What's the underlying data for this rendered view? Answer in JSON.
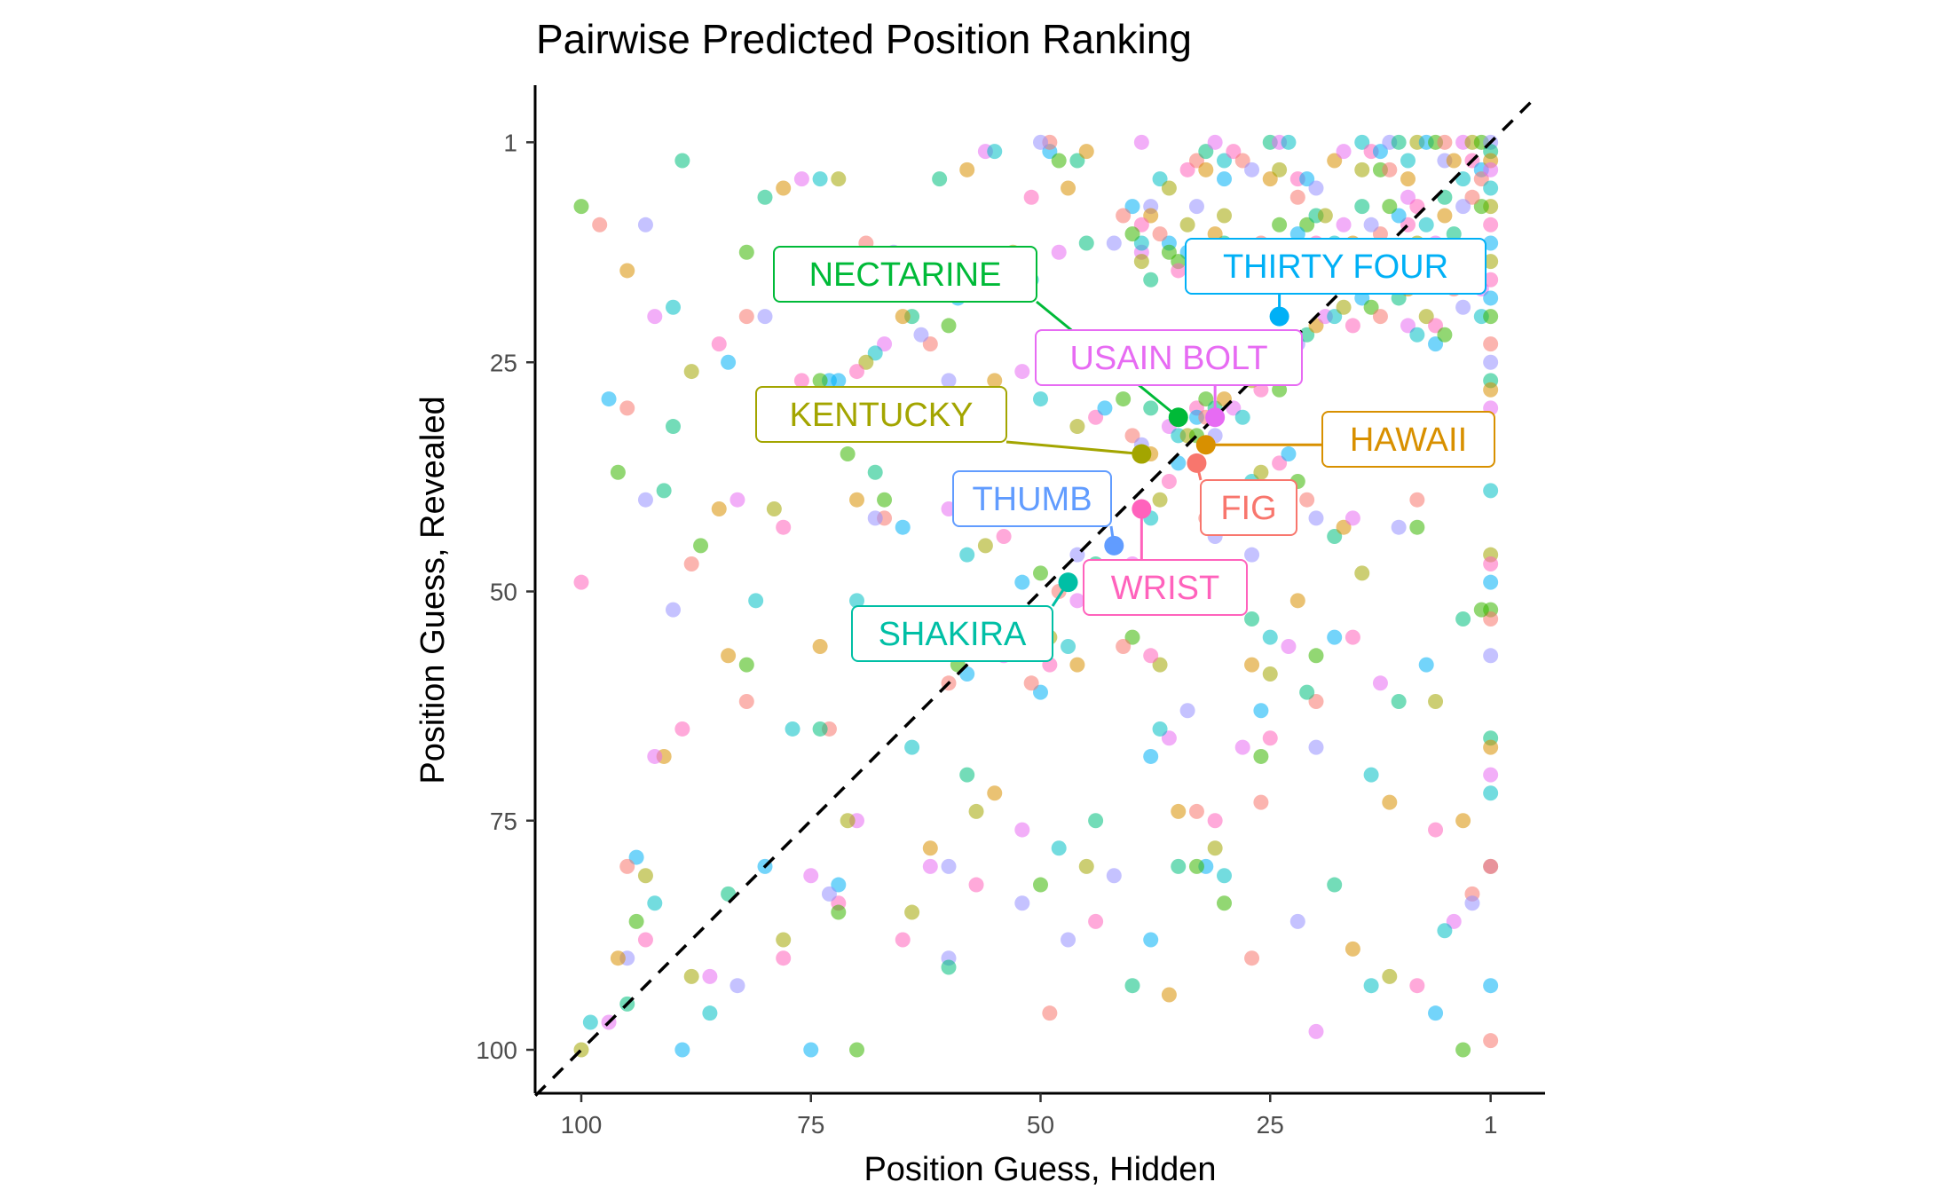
{
  "chart_data": {
    "type": "scatter",
    "title": "Pairwise Predicted Position Ranking",
    "xlabel": "Position Guess, Hidden",
    "ylabel": "Position Guess, Revealed",
    "xlim": [
      105,
      -4
    ],
    "ylim": [
      105,
      -4
    ],
    "x_reversed": true,
    "y_reversed": true,
    "x_ticks": [
      100,
      75,
      50,
      25,
      1
    ],
    "y_ticks": [
      1,
      25,
      50,
      75,
      100
    ],
    "reference_line": "y = x (dashed)",
    "grid": false,
    "palette": [
      "#F8766D",
      "#D89000",
      "#A3A500",
      "#39B600",
      "#00BF7D",
      "#00BFC4",
      "#00B0F6",
      "#9590FF",
      "#E76BF3",
      "#FF62BC"
    ],
    "background_points": [
      [
        100,
        8
      ],
      [
        98,
        10
      ],
      [
        93,
        10
      ],
      [
        89,
        3
      ],
      [
        95,
        15
      ],
      [
        92,
        20
      ],
      [
        90,
        19
      ],
      [
        88,
        26
      ],
      [
        85,
        23
      ],
      [
        84,
        25
      ],
      [
        82,
        13
      ],
      [
        82,
        20
      ],
      [
        80,
        20
      ],
      [
        80,
        7
      ],
      [
        78,
        6
      ],
      [
        76,
        5
      ],
      [
        74,
        5
      ],
      [
        72,
        5
      ],
      [
        76,
        27
      ],
      [
        73,
        27
      ],
      [
        71,
        35
      ],
      [
        69,
        12
      ],
      [
        66,
        13
      ],
      [
        61,
        5
      ],
      [
        58,
        4
      ],
      [
        56,
        2
      ],
      [
        55,
        2
      ],
      [
        53,
        13
      ],
      [
        51,
        7
      ],
      [
        49,
        2
      ],
      [
        48,
        3
      ],
      [
        49,
        1
      ],
      [
        50,
        1
      ],
      [
        46,
        3
      ],
      [
        45,
        2
      ],
      [
        39,
        1
      ],
      [
        37,
        5
      ],
      [
        36,
        6
      ],
      [
        34,
        4
      ],
      [
        34,
        13
      ],
      [
        35,
        14
      ],
      [
        33,
        3
      ],
      [
        33,
        8
      ],
      [
        32,
        2
      ],
      [
        32,
        4
      ],
      [
        31,
        1
      ],
      [
        30,
        3
      ],
      [
        30,
        9
      ],
      [
        29,
        2
      ],
      [
        30,
        5
      ],
      [
        30,
        15
      ],
      [
        28,
        3
      ],
      [
        27,
        4
      ],
      [
        25,
        1
      ],
      [
        25,
        5
      ],
      [
        24,
        1
      ],
      [
        23,
        1
      ],
      [
        24,
        4
      ],
      [
        22,
        5
      ],
      [
        21,
        5
      ],
      [
        21,
        10
      ],
      [
        22,
        7
      ],
      [
        20,
        6
      ],
      [
        20,
        9
      ],
      [
        18,
        3
      ],
      [
        17,
        2
      ],
      [
        15,
        1
      ],
      [
        15,
        4
      ],
      [
        14,
        2
      ],
      [
        13,
        2
      ],
      [
        13,
        4
      ],
      [
        12,
        4
      ],
      [
        12,
        1
      ],
      [
        11,
        1
      ],
      [
        10,
        5
      ],
      [
        10,
        7
      ],
      [
        10,
        3
      ],
      [
        9,
        1
      ],
      [
        9,
        8
      ],
      [
        8,
        1
      ],
      [
        7,
        1
      ],
      [
        6,
        1
      ],
      [
        6,
        3
      ],
      [
        6,
        7
      ],
      [
        5,
        3
      ],
      [
        4,
        1
      ],
      [
        4,
        5
      ],
      [
        3,
        1
      ],
      [
        3,
        3
      ],
      [
        2,
        4
      ],
      [
        2,
        1
      ],
      [
        2,
        5
      ],
      [
        1,
        1
      ],
      [
        1,
        2
      ],
      [
        1,
        3
      ],
      [
        1,
        4
      ],
      [
        1,
        6
      ],
      [
        1,
        8
      ],
      [
        1,
        10
      ],
      [
        1,
        12
      ],
      [
        2,
        8
      ],
      [
        3,
        7
      ],
      [
        4,
        8
      ],
      [
        5,
        11
      ],
      [
        6,
        9
      ],
      [
        7,
        12
      ],
      [
        8,
        10
      ],
      [
        9,
        12
      ],
      [
        10,
        10
      ],
      [
        11,
        9
      ],
      [
        12,
        8
      ],
      [
        13,
        11
      ],
      [
        14,
        10
      ],
      [
        15,
        8
      ],
      [
        16,
        12
      ],
      [
        17,
        10
      ],
      [
        18,
        12
      ],
      [
        19,
        9
      ],
      [
        20,
        12
      ],
      [
        22,
        11
      ],
      [
        24,
        10
      ],
      [
        26,
        12
      ],
      [
        28,
        13
      ],
      [
        30,
        12
      ],
      [
        31,
        11
      ],
      [
        32,
        14
      ],
      [
        33,
        16
      ],
      [
        34,
        10
      ],
      [
        35,
        15
      ],
      [
        36,
        12
      ],
      [
        36,
        13
      ],
      [
        37,
        11
      ],
      [
        38,
        8
      ],
      [
        38,
        16
      ],
      [
        38,
        9
      ],
      [
        39,
        13
      ],
      [
        39,
        12
      ],
      [
        39,
        14
      ],
      [
        39,
        10
      ],
      [
        40,
        8
      ],
      [
        40,
        11
      ],
      [
        41,
        9
      ],
      [
        42,
        12
      ],
      [
        45,
        12
      ],
      [
        47,
        6
      ],
      [
        48,
        13
      ],
      [
        51,
        16
      ],
      [
        53,
        17
      ],
      [
        57,
        16
      ],
      [
        59,
        18
      ],
      [
        60,
        21
      ],
      [
        62,
        23
      ],
      [
        63,
        22
      ],
      [
        64,
        20
      ],
      [
        65,
        20
      ],
      [
        67,
        23
      ],
      [
        68,
        24
      ],
      [
        69,
        25
      ],
      [
        70,
        26
      ],
      [
        72,
        27
      ],
      [
        74,
        27
      ],
      [
        64,
        31
      ],
      [
        60,
        27
      ],
      [
        58,
        29
      ],
      [
        55,
        27
      ],
      [
        52,
        26
      ],
      [
        50,
        29
      ],
      [
        46,
        32
      ],
      [
        44,
        31
      ],
      [
        43,
        30
      ],
      [
        41,
        29
      ],
      [
        40,
        33
      ],
      [
        39,
        34
      ],
      [
        38,
        30
      ],
      [
        38,
        35
      ],
      [
        36,
        32
      ],
      [
        35,
        33
      ],
      [
        34,
        33
      ],
      [
        33,
        30
      ],
      [
        33,
        31
      ],
      [
        32,
        29
      ],
      [
        32,
        31
      ],
      [
        31,
        33
      ],
      [
        31,
        30
      ],
      [
        30,
        29
      ],
      [
        29,
        30
      ],
      [
        28,
        31
      ],
      [
        27,
        27
      ],
      [
        26,
        28
      ],
      [
        25,
        26
      ],
      [
        24,
        28
      ],
      [
        23,
        25
      ],
      [
        22,
        23
      ],
      [
        21,
        22
      ],
      [
        20,
        21
      ],
      [
        19,
        20
      ],
      [
        18,
        20
      ],
      [
        17,
        19
      ],
      [
        16,
        21
      ],
      [
        15,
        18
      ],
      [
        14,
        19
      ],
      [
        13,
        20
      ],
      [
        12,
        16
      ],
      [
        11,
        18
      ],
      [
        10,
        17
      ],
      [
        10,
        21
      ],
      [
        9,
        22
      ],
      [
        8,
        20
      ],
      [
        7,
        21
      ],
      [
        7,
        23
      ],
      [
        6,
        22
      ],
      [
        5,
        17
      ],
      [
        4,
        19
      ],
      [
        3,
        14
      ],
      [
        3,
        15
      ],
      [
        2,
        17
      ],
      [
        2,
        20
      ],
      [
        1,
        14
      ],
      [
        1,
        16
      ],
      [
        1,
        18
      ],
      [
        1,
        20
      ],
      [
        1,
        23
      ],
      [
        1,
        25
      ],
      [
        1,
        27
      ],
      [
        1,
        28
      ],
      [
        1,
        30
      ],
      [
        1,
        39
      ],
      [
        1,
        46
      ],
      [
        1,
        47
      ],
      [
        1,
        49
      ],
      [
        1,
        52
      ],
      [
        1,
        53
      ],
      [
        1,
        57
      ],
      [
        1,
        66
      ],
      [
        1,
        67
      ],
      [
        1,
        70
      ],
      [
        1,
        72
      ],
      [
        1,
        80
      ],
      [
        1,
        80
      ],
      [
        1,
        93
      ],
      [
        2,
        52
      ],
      [
        3,
        83
      ],
      [
        3,
        84
      ],
      [
        4,
        53
      ],
      [
        4,
        75
      ],
      [
        5,
        86
      ],
      [
        6,
        87
      ],
      [
        7,
        62
      ],
      [
        7,
        76
      ],
      [
        8,
        58
      ],
      [
        9,
        43
      ],
      [
        9,
        40
      ],
      [
        11,
        43
      ],
      [
        11,
        62
      ],
      [
        12,
        73
      ],
      [
        13,
        60
      ],
      [
        14,
        70
      ],
      [
        15,
        48
      ],
      [
        16,
        55
      ],
      [
        18,
        55
      ],
      [
        20,
        57
      ],
      [
        20,
        62
      ],
      [
        20,
        67
      ],
      [
        21,
        61
      ],
      [
        22,
        51
      ],
      [
        23,
        56
      ],
      [
        25,
        55
      ],
      [
        25,
        59
      ],
      [
        25,
        66
      ],
      [
        26,
        63
      ],
      [
        26,
        68
      ],
      [
        26,
        73
      ],
      [
        27,
        46
      ],
      [
        27,
        53
      ],
      [
        27,
        58
      ],
      [
        28,
        67
      ],
      [
        30,
        81
      ],
      [
        31,
        78
      ],
      [
        31,
        75
      ],
      [
        32,
        80
      ],
      [
        33,
        80
      ],
      [
        33,
        74
      ],
      [
        34,
        63
      ],
      [
        35,
        80
      ],
      [
        35,
        74
      ],
      [
        36,
        66
      ],
      [
        37,
        65
      ],
      [
        37,
        58
      ],
      [
        38,
        57
      ],
      [
        38,
        68
      ],
      [
        40,
        55
      ],
      [
        41,
        56
      ],
      [
        42,
        81
      ],
      [
        44,
        75
      ],
      [
        46,
        58
      ],
      [
        46,
        51
      ],
      [
        47,
        56
      ],
      [
        49,
        55
      ],
      [
        49,
        58
      ],
      [
        50,
        61
      ],
      [
        50,
        82
      ],
      [
        51,
        60
      ],
      [
        52,
        84
      ],
      [
        53,
        56
      ],
      [
        54,
        53
      ],
      [
        54,
        57
      ],
      [
        56,
        56
      ],
      [
        57,
        74
      ],
      [
        57,
        82
      ],
      [
        58,
        59
      ],
      [
        59,
        58
      ],
      [
        60,
        60
      ],
      [
        60,
        90
      ],
      [
        60,
        91
      ],
      [
        62,
        78
      ],
      [
        62,
        80
      ],
      [
        64,
        67
      ],
      [
        64,
        85
      ],
      [
        65,
        88
      ],
      [
        65,
        43
      ],
      [
        67,
        40
      ],
      [
        67,
        42
      ],
      [
        68,
        42
      ],
      [
        68,
        37
      ],
      [
        70,
        40
      ],
      [
        70,
        75
      ],
      [
        70,
        51
      ],
      [
        71,
        75
      ],
      [
        72,
        84
      ],
      [
        72,
        82
      ],
      [
        72,
        85
      ],
      [
        73,
        65
      ],
      [
        73,
        83
      ],
      [
        74,
        65
      ],
      [
        74,
        56
      ],
      [
        75,
        81
      ],
      [
        77,
        65
      ],
      [
        78,
        88
      ],
      [
        78,
        90
      ],
      [
        80,
        80
      ],
      [
        82,
        58
      ],
      [
        82,
        62
      ],
      [
        83,
        93
      ],
      [
        84,
        83
      ],
      [
        84,
        57
      ],
      [
        86,
        92
      ],
      [
        86,
        96
      ],
      [
        88,
        92
      ],
      [
        89,
        65
      ],
      [
        89,
        100
      ],
      [
        87,
        45
      ],
      [
        88,
        47
      ],
      [
        90,
        52
      ],
      [
        91,
        39
      ],
      [
        91,
        68
      ],
      [
        92,
        68
      ],
      [
        92,
        84
      ],
      [
        93,
        81
      ],
      [
        93,
        88
      ],
      [
        94,
        79
      ],
      [
        94,
        86
      ],
      [
        95,
        80
      ],
      [
        95,
        90
      ],
      [
        95,
        95
      ],
      [
        96,
        90
      ],
      [
        97,
        97
      ],
      [
        99,
        97
      ],
      [
        100,
        100
      ],
      [
        100,
        49
      ],
      [
        97,
        29
      ],
      [
        96,
        37
      ],
      [
        95,
        30
      ],
      [
        93,
        40
      ],
      [
        90,
        32
      ],
      [
        85,
        41
      ],
      [
        83,
        40
      ],
      [
        81,
        51
      ],
      [
        79,
        41
      ],
      [
        78,
        43
      ],
      [
        75,
        100
      ],
      [
        70,
        100
      ],
      [
        49,
        96
      ],
      [
        47,
        88
      ],
      [
        40,
        93
      ],
      [
        36,
        94
      ],
      [
        20,
        98
      ],
      [
        14,
        93
      ],
      [
        12,
        92
      ],
      [
        9,
        93
      ],
      [
        7,
        96
      ],
      [
        4,
        100
      ],
      [
        1,
        99
      ],
      [
        60,
        80
      ],
      [
        58,
        70
      ],
      [
        55,
        72
      ],
      [
        52,
        76
      ],
      [
        48,
        78
      ],
      [
        45,
        80
      ],
      [
        44,
        86
      ],
      [
        38,
        88
      ],
      [
        30,
        84
      ],
      [
        27,
        90
      ],
      [
        22,
        86
      ],
      [
        18,
        82
      ],
      [
        16,
        89
      ],
      [
        60,
        41
      ],
      [
        58,
        46
      ],
      [
        56,
        45
      ],
      [
        54,
        44
      ],
      [
        52,
        49
      ],
      [
        50,
        48
      ],
      [
        48,
        50
      ],
      [
        46,
        46
      ],
      [
        44,
        47
      ],
      [
        42,
        45
      ],
      [
        40,
        47
      ],
      [
        38,
        42
      ],
      [
        37,
        40
      ],
      [
        36,
        38
      ],
      [
        35,
        36
      ],
      [
        33,
        33
      ],
      [
        32,
        42
      ],
      [
        31,
        44
      ],
      [
        30,
        43
      ],
      [
        29,
        41
      ],
      [
        28,
        40
      ],
      [
        27,
        38
      ],
      [
        26,
        37
      ],
      [
        24,
        36
      ],
      [
        23,
        35
      ],
      [
        22,
        38
      ],
      [
        21,
        40
      ],
      [
        20,
        42
      ],
      [
        18,
        44
      ],
      [
        17,
        43
      ],
      [
        16,
        42
      ]
    ],
    "highlighted_points": [
      {
        "label": "NECTARINE",
        "x": 35,
        "y": 31,
        "color": "#00BA38"
      },
      {
        "label": "THIRTY FOUR",
        "x": 24,
        "y": 20,
        "color": "#00B0F6"
      },
      {
        "label": "USAIN BOLT",
        "x": 31,
        "y": 31,
        "color": "#E76BF3"
      },
      {
        "label": "KENTUCKY",
        "x": 39,
        "y": 35,
        "color": "#A3A500"
      },
      {
        "label": "HAWAII",
        "x": 32,
        "y": 34,
        "color": "#D89000"
      },
      {
        "label": "FIG",
        "x": 33,
        "y": 36,
        "color": "#F8766D"
      },
      {
        "label": "THUMB",
        "x": 42,
        "y": 45,
        "color": "#619CFF"
      },
      {
        "label": "WRIST",
        "x": 39,
        "y": 41,
        "color": "#FF62BC"
      },
      {
        "label": "SHAKIRA",
        "x": 47,
        "y": 49,
        "color": "#00BFA5"
      }
    ]
  }
}
